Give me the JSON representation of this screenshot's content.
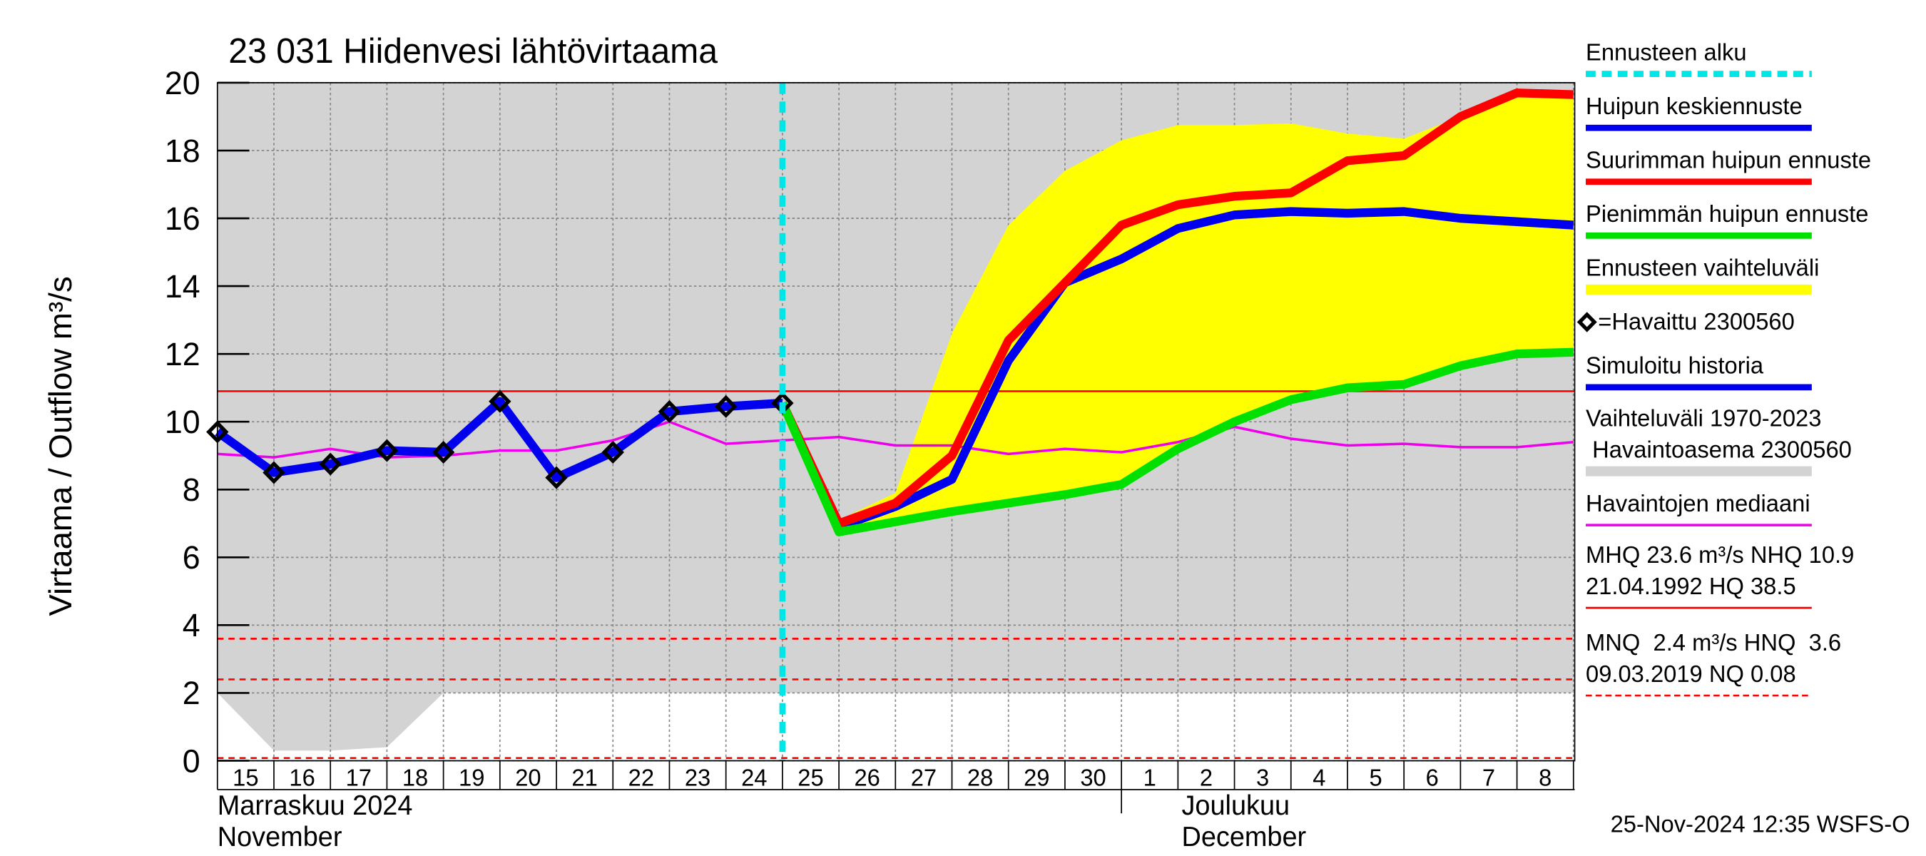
{
  "chart_data": {
    "type": "line",
    "title": "23 031 Hiidenvesi lähtövirtaama",
    "y_label": "Virtaama / Outflow   m³/s",
    "timestamp": "25-Nov-2024 12:35 WSFS-O",
    "categories": [
      "15",
      "16",
      "17",
      "18",
      "19",
      "20",
      "21",
      "22",
      "23",
      "24",
      "25",
      "26",
      "27",
      "28",
      "29",
      "30",
      "1",
      "2",
      "3",
      "4",
      "5",
      "6",
      "7",
      "8",
      null
    ],
    "x_groups": [
      {
        "labels": [
          "Marraskuu 2024",
          "November"
        ],
        "start": 0
      },
      {
        "labels": [
          "Joulukuu",
          "December"
        ],
        "start": 16
      }
    ],
    "ylim": [
      0,
      20
    ],
    "yticks": [
      0,
      2,
      4,
      6,
      8,
      10,
      12,
      14,
      16,
      18,
      20
    ],
    "grid": true,
    "forecast_start": {
      "name": "Ennusteen alku",
      "color": "#00e5e5",
      "x": 10
    },
    "series": [
      {
        "name": "Huipun keskiennuste",
        "kind": "line",
        "color": "#0000ee",
        "values": [
          null,
          null,
          null,
          null,
          null,
          null,
          null,
          null,
          null,
          null,
          10.55,
          6.9,
          7.5,
          8.3,
          11.8,
          14.1,
          14.8,
          15.7,
          16.1,
          16.2,
          16.15,
          16.2,
          16.0,
          15.9,
          15.8
        ]
      },
      {
        "name": "Suurimman huipun ennuste",
        "kind": "line",
        "color": "#ff0000",
        "values": [
          null,
          null,
          null,
          null,
          null,
          null,
          null,
          null,
          null,
          null,
          10.55,
          7.0,
          7.6,
          9.0,
          12.4,
          14.1,
          15.8,
          16.4,
          16.65,
          16.75,
          17.7,
          17.85,
          19.0,
          19.7,
          19.65
        ]
      },
      {
        "name": "Pienimmän huipun ennuste",
        "kind": "line",
        "color": "#00e000",
        "values": [
          null,
          null,
          null,
          null,
          null,
          null,
          null,
          null,
          null,
          null,
          10.55,
          6.75,
          7.05,
          7.35,
          7.6,
          7.85,
          8.15,
          9.2,
          10.0,
          10.65,
          11.0,
          11.1,
          11.65,
          12.0,
          12.05
        ]
      },
      {
        "name": "Ennusteen vaihteluväli",
        "kind": "band",
        "color": "#ffff00",
        "lower": [
          null,
          null,
          null,
          null,
          null,
          null,
          null,
          null,
          null,
          null,
          10.55,
          6.75,
          7.05,
          7.35,
          7.6,
          7.85,
          8.15,
          9.2,
          10.0,
          10.65,
          11.0,
          11.1,
          11.65,
          12.0,
          12.05
        ],
        "upper": [
          null,
          null,
          null,
          null,
          null,
          null,
          null,
          null,
          null,
          null,
          10.55,
          7.1,
          7.9,
          12.6,
          15.8,
          17.4,
          18.3,
          18.75,
          18.75,
          18.8,
          18.5,
          18.35,
          19.0,
          19.7,
          19.65
        ]
      },
      {
        "name": "=Havaittu 2300560",
        "kind": "markers",
        "color": "#000000",
        "values": [
          9.7,
          8.5,
          8.75,
          9.15,
          9.1,
          10.6,
          8.35,
          9.1,
          10.3,
          10.45,
          10.55,
          null,
          null,
          null,
          null,
          null,
          null,
          null,
          null,
          null,
          null,
          null,
          null,
          null,
          null
        ]
      },
      {
        "name": "Simuloitu historia",
        "kind": "line",
        "color": "#0000ee",
        "values": [
          9.7,
          8.5,
          8.75,
          9.15,
          9.1,
          10.6,
          8.35,
          9.1,
          10.3,
          10.45,
          10.55,
          null,
          null,
          null,
          null,
          null,
          null,
          null,
          null,
          null,
          null,
          null,
          null,
          null,
          null
        ]
      },
      {
        "name": [
          "Vaihteluväli 1970-2023",
          " Havaintoasema 2300560"
        ],
        "kind": "band",
        "color": "#d3d3d3",
        "lower": [
          2.0,
          0.3,
          0.3,
          0.4,
          2.0,
          2.0,
          2.0,
          2.0,
          2.0,
          2.0,
          2.0,
          2.0,
          2.0,
          2.0,
          2.0,
          2.0,
          2.0,
          2.0,
          2.0,
          2.0,
          2.0,
          2.0,
          2.0,
          2.0,
          2.0
        ],
        "upper": [
          20,
          20,
          20,
          20,
          20,
          20,
          20,
          20,
          20,
          20,
          20,
          20,
          20,
          20,
          20,
          20,
          20,
          20,
          20,
          20,
          20,
          20,
          20,
          20,
          20
        ]
      },
      {
        "name": "Havaintojen mediaani",
        "kind": "thin",
        "color": "#ee00ee",
        "values": [
          9.05,
          8.95,
          9.2,
          8.95,
          9.0,
          9.15,
          9.15,
          9.45,
          10.0,
          9.35,
          9.45,
          9.55,
          9.3,
          9.3,
          9.05,
          9.2,
          9.1,
          9.4,
          9.85,
          9.5,
          9.3,
          9.35,
          9.25,
          9.25,
          9.4
        ]
      }
    ],
    "reference_lines": [
      {
        "name": [
          "MHQ 23.6 m³/s NHQ 10.9",
          "21.04.1992 HQ 38.5"
        ],
        "color": "#ff0000",
        "dashed": false,
        "values": [
          10.9
        ]
      },
      {
        "name": [
          "MNQ  2.4 m³/s HNQ  3.6",
          "09.03.2019 NQ 0.08"
        ],
        "color": "#ff0000",
        "dashed": true,
        "values": [
          3.6,
          2.4,
          0.08
        ]
      }
    ]
  }
}
